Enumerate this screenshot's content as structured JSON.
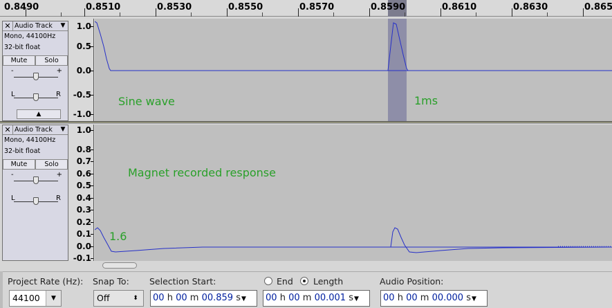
{
  "ruler": {
    "labels": [
      "0.8490",
      "0.8510",
      "0.8530",
      "0.8550",
      "0.8570",
      "0.8590",
      "0.8610",
      "0.8630",
      "0.865"
    ]
  },
  "track1": {
    "name": "Audio Track",
    "format": "Mono, 44100Hz",
    "bitdepth": "32-bit float",
    "mute": "Mute",
    "solo": "Solo",
    "gain_minus": "-",
    "gain_plus": "+",
    "pan_left": "L",
    "pan_right": "R",
    "scale": [
      "1.0",
      "0.5",
      "0.0",
      "-0.5",
      "-1.0"
    ],
    "annot_left": "Sine wave",
    "annot_right": "1ms"
  },
  "track2": {
    "name": "Audio Track",
    "format": "Mono, 44100Hz",
    "bitdepth": "32-bit float",
    "mute": "Mute",
    "solo": "Solo",
    "gain_minus": "-",
    "gain_plus": "+",
    "pan_left": "L",
    "pan_right": "R",
    "scale": [
      "1.0",
      "0.8",
      "0.7",
      "0.6",
      "0.5",
      "0.4",
      "0.3",
      "0.2",
      "0.1",
      "0.0",
      "-0.1"
    ],
    "annot_title": "Magnet recorded response",
    "annot_value": "1.6"
  },
  "toolbar": {
    "project_rate_label": "Project Rate (Hz):",
    "project_rate_value": "44100",
    "snap_to_label": "Snap To:",
    "snap_to_value": "Off",
    "selection_start_label": "Selection Start:",
    "end_label": "End",
    "length_label": "Length",
    "audio_position_label": "Audio Position:",
    "selection_start": {
      "h": "00",
      "m": "00",
      "s": "00.859"
    },
    "length": {
      "h": "00",
      "m": "00",
      "s": "00.001"
    },
    "audio_position": {
      "h": "00",
      "m": "00",
      "s": "00.000"
    },
    "unit_h": "h",
    "unit_m": "m",
    "unit_s": "s",
    "selected_mode": "Length"
  }
}
